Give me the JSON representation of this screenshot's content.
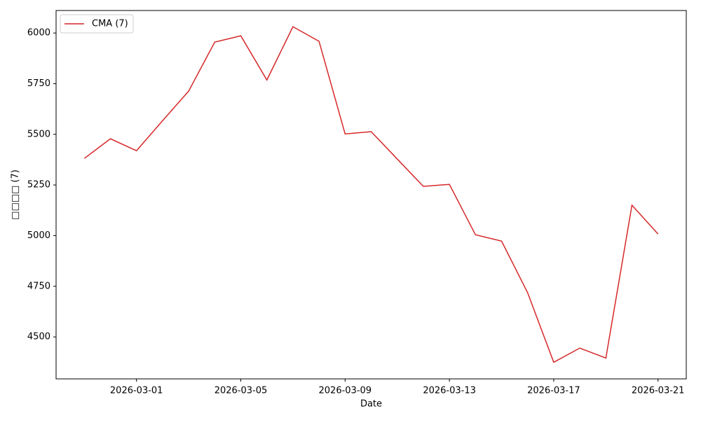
{
  "chart_data": {
    "type": "line",
    "x_label": "Date",
    "y_label": "□□□□ (7)",
    "x": [
      "2026-02-27",
      "2026-02-28",
      "2026-03-01",
      "2026-03-02",
      "2026-03-03",
      "2026-03-04",
      "2026-03-05",
      "2026-03-06",
      "2026-03-07",
      "2026-03-08",
      "2026-03-09",
      "2026-03-10",
      "2026-03-11",
      "2026-03-12",
      "2026-03-13",
      "2026-03-14",
      "2026-03-15",
      "2026-03-16",
      "2026-03-17",
      "2026-03-18",
      "2026-03-19",
      "2026-03-20",
      "2026-03-21"
    ],
    "series": [
      {
        "name": "CMA (7)",
        "color": "#d62728",
        "values": [
          5381,
          5478,
          5419,
          5567,
          5713,
          5955,
          5986,
          5768,
          6031,
          5959,
          5502,
          5513,
          5378,
          5243,
          5253,
          5004,
          4973,
          4718,
          4375,
          4445,
          4396,
          5150,
          5008
        ]
      }
    ],
    "xlim": [
      "2026-02-25T22:00",
      "2026-03-22T02:00"
    ],
    "xticks": [
      "2026-03-01",
      "2026-03-05",
      "2026-03-09",
      "2026-03-13",
      "2026-03-17",
      "2026-03-21"
    ],
    "ylim": [
      4293,
      6111
    ],
    "yticks": [
      4500,
      4750,
      5000,
      5250,
      5500,
      5750,
      6000
    ],
    "grid": false,
    "legend": "upper left"
  }
}
